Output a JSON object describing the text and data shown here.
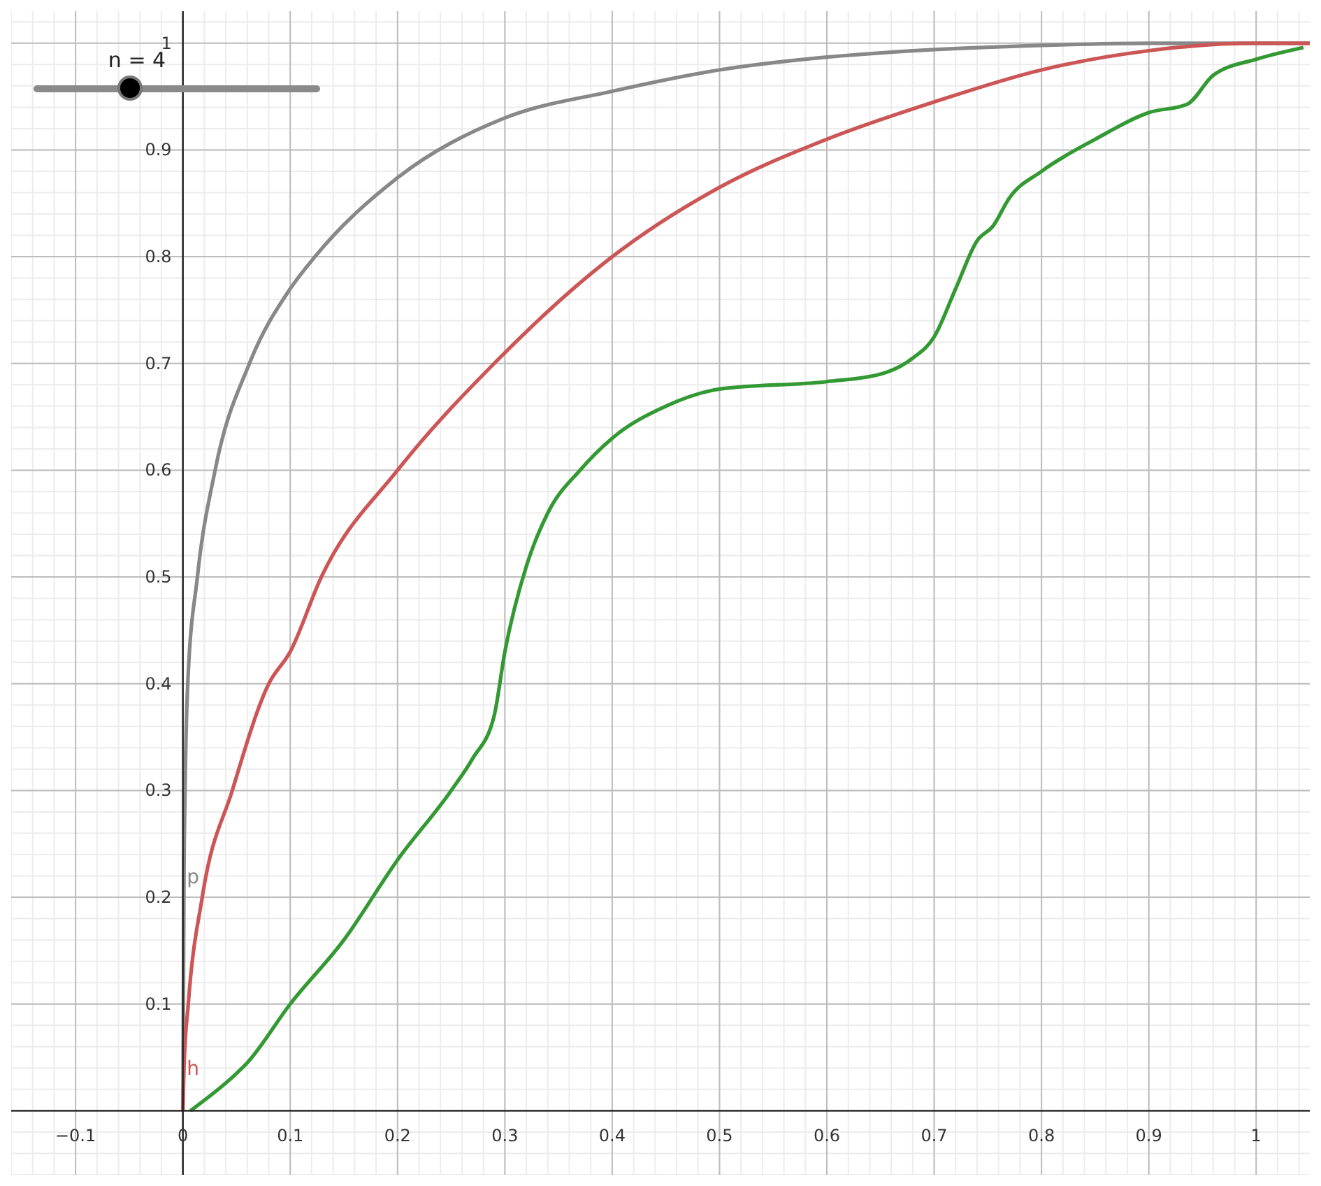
{
  "chart_data": {
    "type": "line",
    "annotations": [
      "n = 4"
    ],
    "xlim": [
      -0.16,
      1.05
    ],
    "ylim": [
      -0.06,
      1.03
    ],
    "xticks": [
      {
        "value": -0.1,
        "label": "−0.1"
      },
      0,
      0.1,
      0.2,
      0.3,
      0.4,
      0.5,
      0.6,
      0.7,
      0.8,
      0.9,
      1
    ],
    "yticks": [
      0.1,
      0.2,
      0.3,
      0.4,
      0.5,
      0.6,
      0.7,
      0.8,
      0.9,
      1
    ],
    "grid": true,
    "marker": "none",
    "line_style": "solid",
    "series": [
      {
        "name": "p",
        "color": "#888888",
        "x": [
          0,
          0.001,
          0.002,
          0.0045,
          0.0135,
          0.03,
          0.062,
          0.1,
          0.123,
          0.2,
          0.3,
          0.4,
          0.5,
          0.6,
          0.7,
          0.8,
          0.9,
          1,
          1.05
        ],
        "values": [
          0,
          0.22,
          0.3,
          0.4,
          0.5,
          0.6,
          0.7,
          0.77,
          0.8,
          0.874,
          0.93,
          0.955,
          0.975,
          0.987,
          0.994,
          0.998,
          1,
          1,
          1
        ]
      },
      {
        "name": "h",
        "color": "#cc5555",
        "x": [
          0,
          0.001,
          0.005,
          0.018,
          0.046,
          0.08,
          0.1,
          0.129,
          0.2,
          0.29,
          0.4,
          0.5,
          0.6,
          0.7,
          0.8,
          0.9,
          1,
          1.05
        ],
        "values": [
          0,
          0.04,
          0.1,
          0.2,
          0.3,
          0.4,
          0.43,
          0.5,
          0.6,
          0.7,
          0.8,
          0.865,
          0.91,
          0.945,
          0.975,
          0.993,
          1,
          1
        ]
      },
      {
        "color": "#339933",
        "x": [
          0.007,
          0.05,
          0.06,
          0.1,
          0.15,
          0.2,
          0.25,
          0.27,
          0.29,
          0.3,
          0.32,
          0.34,
          0.37,
          0.4,
          0.45,
          0.5,
          0.6,
          0.65,
          0.68,
          0.7,
          0.72,
          0.74,
          0.755,
          0.77,
          0.8,
          0.85,
          0.9,
          0.936,
          0.96,
          1,
          1.044
        ],
        "values": [
          0,
          0.035,
          0.045,
          0.1,
          0.16,
          0.235,
          0.3,
          0.33,
          0.37,
          0.43,
          0.51,
          0.56,
          0.6,
          0.63,
          0.66,
          0.676,
          0.683,
          0.69,
          0.705,
          0.725,
          0.77,
          0.815,
          0.829,
          0.855,
          0.88,
          0.91,
          0.935,
          0.943,
          0.97,
          0.985,
          0.996
        ]
      }
    ]
  }
}
